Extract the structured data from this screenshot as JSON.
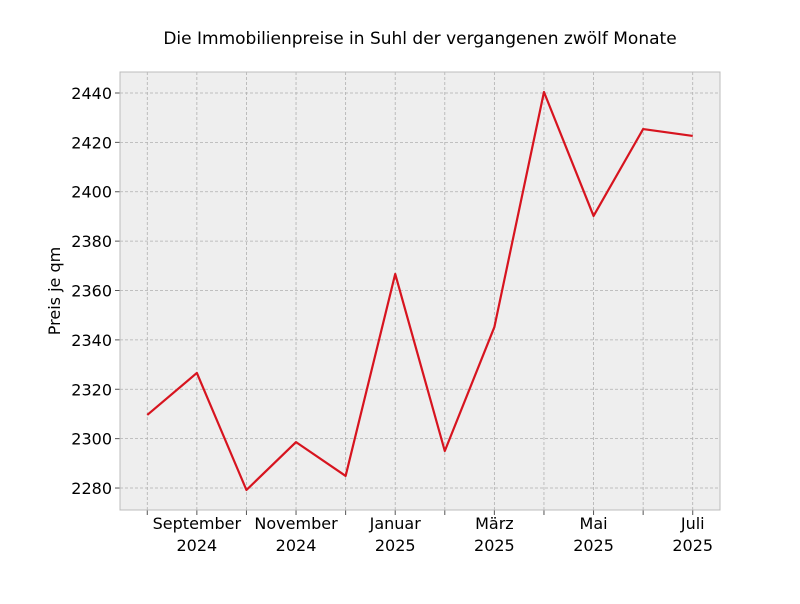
{
  "chart_data": {
    "type": "line",
    "title": "Die Immobilienpreise in Suhl der vergangenen zwölf Monate",
    "y_label": "Preis je qm",
    "categories": [
      null,
      [
        "September",
        "2024"
      ],
      null,
      [
        "November",
        "2024"
      ],
      null,
      [
        "Januar",
        "2025"
      ],
      null,
      [
        "März",
        "2025"
      ],
      null,
      [
        "Mai",
        "2025"
      ],
      null,
      [
        "Juli",
        "2025"
      ]
    ],
    "series": [
      {
        "color": "#d7141f",
        "values": [
          2309.6,
          2326.6,
          2279.2,
          2298.6,
          2284.9,
          2366.7,
          2295.0,
          2345.2,
          2440.4,
          2390.2,
          2425.4,
          2422.6
        ]
      }
    ],
    "ylim": [
      2271.1,
      2448.5
    ],
    "yticks": [
      2280,
      2300,
      2320,
      2340,
      2360,
      2380,
      2400,
      2420,
      2440
    ],
    "grid": true
  }
}
